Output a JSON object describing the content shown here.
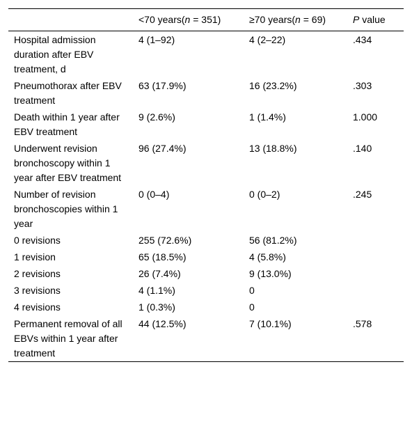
{
  "table": {
    "header": [
      [
        ""
      ],
      [
        "<70 years(",
        "n",
        " = 351)"
      ],
      [
        "≥70 years(",
        "n",
        " = 69)"
      ],
      [
        "",
        "P",
        " value"
      ]
    ],
    "rows": [
      [
        "Hospital admission duration after EBV treatment, d",
        "4 (1–92)",
        "4 (2–22)",
        ".434"
      ],
      [
        "Pneumothorax after EBV treatment",
        "63 (17.9%)",
        "16 (23.2%)",
        ".303"
      ],
      [
        "Death within 1 year after EBV treatment",
        "9 (2.6%)",
        "1 (1.4%)",
        "1.000"
      ],
      [
        "Underwent revision bronchoscopy within 1 year after EBV treatment",
        "96 (27.4%)",
        "13 (18.8%)",
        ".140"
      ],
      [
        "Number of revision bronchoscopies within 1 year",
        "0 (0–4)",
        "0 (0–2)",
        ".245"
      ],
      [
        "0 revisions",
        "255 (72.6%)",
        "56 (81.2%)",
        ""
      ],
      [
        "1 revision",
        "65 (18.5%)",
        "4 (5.8%)",
        ""
      ],
      [
        "2 revisions",
        "26 (7.4%)",
        "9 (13.0%)",
        ""
      ],
      [
        "3 revisions",
        "4 (1.1%)",
        "0",
        ""
      ],
      [
        "4 revisions",
        "1 (0.3%)",
        "0",
        ""
      ],
      [
        "Permanent removal of all EBVs within 1 year after treatment",
        "44 (12.5%)",
        "7 (10.1%)",
        ".578"
      ]
    ]
  }
}
